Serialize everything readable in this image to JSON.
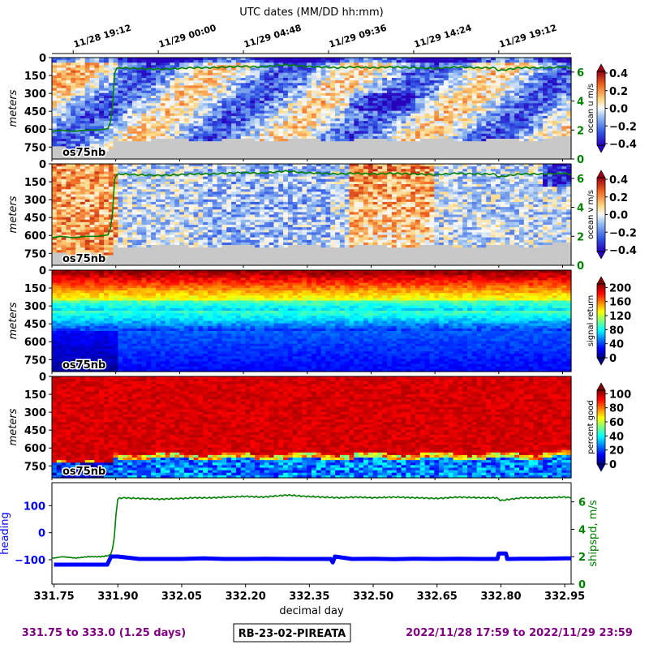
{
  "figure": {
    "top_axis_title": "UTC dates (MM/DD hh:mm)",
    "top_ticks": [
      "11/28 19:12",
      "11/29 00:00",
      "11/29 04:48",
      "11/29 09:36",
      "11/29 14:24",
      "11/29 19:12"
    ],
    "panel_tag": "os75nb",
    "footer_left": "331.75 to 333.0 (1.25 days)",
    "footer_center": "RB-23-02-PIREATA",
    "footer_right": "2022/11/28 17:59 to 2022/11/29 23:59"
  },
  "colors": {
    "purple": "#800080",
    "shipspd": "#008000",
    "heading": "#0000ff",
    "nodata": "#c8c8c8"
  },
  "chart_data": [
    {
      "type": "heatmap",
      "ylabel": "meters",
      "yticks": [
        0,
        150,
        300,
        450,
        600,
        750
      ],
      "ylim": [
        0,
        850
      ],
      "xlim": [
        331.75,
        332.97
      ],
      "colorbar_label": "ocean u m/s",
      "colorbar_ticks": [
        "0.4",
        "0.2",
        "0.0",
        "−0.2",
        "−0.4"
      ],
      "colorbar_range": [
        -0.4,
        0.4
      ],
      "colormap": "blue-white-red",
      "right_axis_ticks": [
        "6",
        "4",
        "2",
        "0"
      ],
      "right_axis_range": [
        0,
        7
      ]
    },
    {
      "type": "heatmap",
      "ylabel": "meters",
      "yticks": [
        0,
        150,
        300,
        450,
        600,
        750
      ],
      "ylim": [
        0,
        850
      ],
      "xlim": [
        331.75,
        332.97
      ],
      "colorbar_label": "ocean v m/s",
      "colorbar_ticks": [
        "0.4",
        "0.2",
        "0.0",
        "−0.2",
        "−0.4"
      ],
      "colorbar_range": [
        -0.4,
        0.4
      ],
      "colormap": "blue-white-red",
      "right_axis_ticks": [
        "6",
        "4",
        "2",
        "0"
      ],
      "right_axis_range": [
        0,
        7
      ]
    },
    {
      "type": "heatmap",
      "ylabel": "meters",
      "yticks": [
        0,
        150,
        300,
        450,
        600,
        750
      ],
      "ylim": [
        0,
        850
      ],
      "xlim": [
        331.75,
        332.97
      ],
      "colorbar_label": "signal return",
      "colorbar_ticks": [
        "200",
        "160",
        "120",
        "80",
        "40",
        "0"
      ],
      "colorbar_range": [
        0,
        210
      ],
      "colormap": "jet"
    },
    {
      "type": "heatmap",
      "ylabel": "meters",
      "yticks": [
        0,
        150,
        300,
        450,
        600,
        750
      ],
      "ylim": [
        0,
        850
      ],
      "xlim": [
        331.75,
        332.97
      ],
      "colorbar_label": "percent good",
      "colorbar_ticks": [
        "100",
        "80",
        "60",
        "40",
        "20",
        "0"
      ],
      "colorbar_range": [
        0,
        105
      ],
      "colormap": "jet"
    },
    {
      "type": "line",
      "xlabel": "decimal day",
      "xticks": [
        "331.75",
        "331.90",
        "332.05",
        "332.20",
        "332.35",
        "332.50",
        "332.65",
        "332.80",
        "332.95"
      ],
      "xtick_values": [
        331.75,
        331.9,
        332.05,
        332.2,
        332.35,
        332.5,
        332.65,
        332.8,
        332.95
      ],
      "xlim": [
        331.745,
        332.965
      ],
      "ylabel": "heading",
      "yticks": [
        "100",
        "0",
        "−100"
      ],
      "ylim": [
        -190,
        185
      ],
      "y2label": "shipspd, m/s",
      "y2ticks": [
        "6",
        "4",
        "2",
        "0"
      ],
      "y2lim": [
        0,
        7.4
      ],
      "series": [
        {
          "name": "shipspd",
          "x": [
            331.75,
            331.77,
            331.8,
            331.83,
            331.86,
            331.882,
            331.888,
            331.893,
            331.898,
            331.91,
            331.95,
            332.0,
            332.05,
            332.08,
            332.12,
            332.16,
            332.2,
            332.24,
            332.28,
            332.3,
            332.34,
            332.38,
            332.42,
            332.46,
            332.5,
            332.55,
            332.6,
            332.65,
            332.7,
            332.75,
            332.79,
            332.8,
            332.85,
            332.9,
            332.95,
            332.965
          ],
          "y": [
            1.9,
            2.0,
            1.9,
            2.0,
            2.0,
            2.1,
            2.6,
            3.8,
            6.2,
            6.3,
            6.25,
            6.2,
            6.25,
            6.3,
            6.3,
            6.35,
            6.4,
            6.35,
            6.45,
            6.5,
            6.4,
            6.35,
            6.3,
            6.35,
            6.3,
            6.35,
            6.3,
            6.25,
            6.35,
            6.3,
            6.3,
            6.1,
            6.3,
            6.3,
            6.35,
            6.3
          ]
        },
        {
          "name": "heading",
          "x": [
            331.75,
            331.8,
            331.85,
            331.875,
            331.884,
            331.9,
            331.95,
            332.0,
            332.05,
            332.1,
            332.15,
            332.2,
            332.25,
            332.3,
            332.35,
            332.38,
            332.4,
            332.405,
            332.41,
            332.45,
            332.5,
            332.55,
            332.6,
            332.65,
            332.7,
            332.75,
            332.78,
            332.792,
            332.795,
            332.812,
            332.815,
            332.85,
            332.9,
            332.95,
            332.965
          ],
          "y": [
            -118,
            -118,
            -118,
            -118,
            -88,
            -88,
            -97,
            -97,
            -97,
            -95,
            -97,
            -97,
            -96,
            -97,
            -97,
            -97,
            -97,
            -110,
            -88,
            -97,
            -96,
            -98,
            -96,
            -97,
            -96,
            -97,
            -97,
            -97,
            -77,
            -77,
            -97,
            -96,
            -96,
            -95,
            -95
          ]
        }
      ]
    }
  ]
}
